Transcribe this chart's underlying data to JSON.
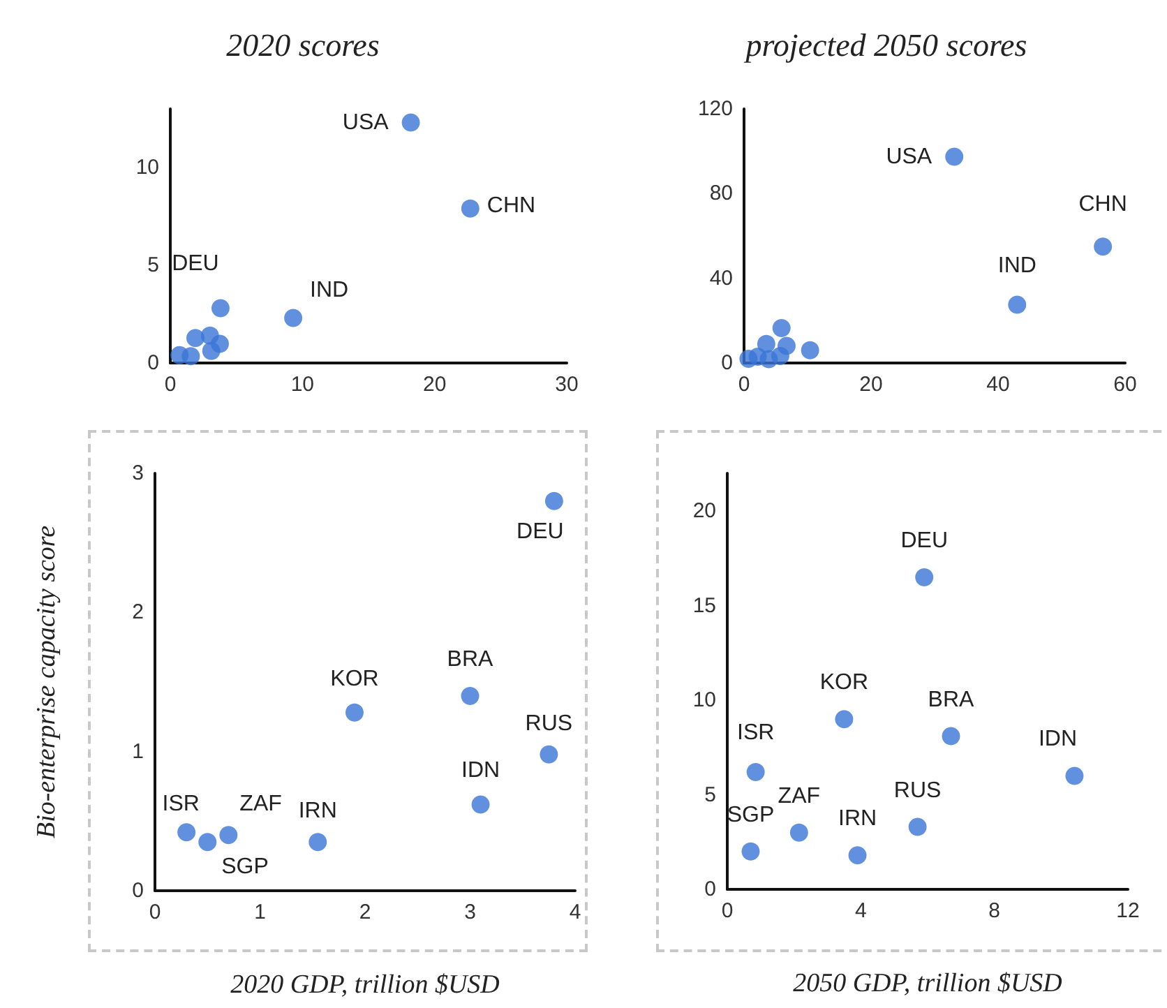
{
  "chart_data": [
    {
      "type": "scatter",
      "title": "2020 scores",
      "color": "#3a74d6",
      "marker": "circle",
      "grid": false,
      "xlim": [
        0,
        30
      ],
      "xticks": [
        0,
        10,
        20,
        30
      ],
      "ylim": [
        0,
        13
      ],
      "yticks": [
        0,
        5,
        10
      ],
      "x": [
        18.2,
        22.7,
        9.3,
        3.8,
        0.7,
        1.55,
        1.9,
        3.0,
        3.1,
        3.75
      ],
      "values": [
        12.3,
        7.9,
        2.3,
        2.8,
        0.4,
        0.35,
        1.28,
        1.4,
        0.62,
        0.98
      ],
      "annotations": [
        {
          "text": "USA",
          "x": 18.2,
          "y": 12.3
        },
        {
          "text": "CHN",
          "x": 22.7,
          "y": 7.9
        },
        {
          "text": "DEU",
          "x": 3.8,
          "y": 2.8
        },
        {
          "text": "IND",
          "x": 9.3,
          "y": 2.3
        }
      ]
    },
    {
      "type": "scatter",
      "title": "projected 2050 scores",
      "color": "#3a74d6",
      "marker": "circle",
      "grid": false,
      "xlim": [
        0,
        60
      ],
      "xticks": [
        0,
        20,
        40,
        60
      ],
      "ylim": [
        0,
        120
      ],
      "yticks": [
        0,
        40,
        80,
        120
      ],
      "x": [
        33.1,
        56.5,
        43,
        5.9,
        0.7,
        2.15,
        3.9,
        3.5,
        6.7,
        10.4,
        5.7
      ],
      "values": [
        97.4,
        55,
        27.5,
        16.5,
        2.0,
        3.0,
        1.8,
        9.0,
        8.1,
        6.0,
        3.3
      ],
      "annotations": [
        {
          "text": "USA",
          "x": 33.1,
          "y": 97.4
        },
        {
          "text": "IND",
          "x": 43,
          "y": 27.5
        },
        {
          "text": "CHN",
          "x": 56.5,
          "y": 55
        }
      ]
    },
    {
      "type": "scatter",
      "ylabel": "Bio-enterprise capacity score",
      "xlabel": "2020 GDP, trillion $USD",
      "color": "#3a74d6",
      "marker": "circle",
      "grid": false,
      "xlim": [
        0,
        4
      ],
      "xticks": [
        0,
        1,
        2,
        3,
        4
      ],
      "ylim": [
        0,
        3
      ],
      "yticks": [
        0,
        1,
        2,
        3
      ],
      "x": [
        0.3,
        0.5,
        0.7,
        1.55,
        1.9,
        3.0,
        3.1,
        3.75,
        3.8
      ],
      "values": [
        0.42,
        0.35,
        0.4,
        0.35,
        1.28,
        1.4,
        0.62,
        0.98,
        2.8
      ],
      "annotations": [
        {
          "text": "ISR",
          "x": 0.3,
          "y": 0.42
        },
        {
          "text": "SGP",
          "x": 0.5,
          "y": 0.35
        },
        {
          "text": "ZAF",
          "x": 0.7,
          "y": 0.4
        },
        {
          "text": "IRN",
          "x": 1.55,
          "y": 0.35
        },
        {
          "text": "KOR",
          "x": 1.9,
          "y": 1.28
        },
        {
          "text": "BRA",
          "x": 3.0,
          "y": 1.4
        },
        {
          "text": "IDN",
          "x": 3.1,
          "y": 0.62
        },
        {
          "text": "RUS",
          "x": 3.75,
          "y": 0.98
        },
        {
          "text": "DEU",
          "x": 3.8,
          "y": 2.8
        }
      ]
    },
    {
      "type": "scatter",
      "xlabel": "2050 GDP, trillion $USD",
      "color": "#3a74d6",
      "marker": "circle",
      "grid": false,
      "xlim": [
        0,
        12
      ],
      "xticks": [
        0,
        4,
        8,
        12
      ],
      "ylim": [
        0,
        22
      ],
      "yticks": [
        0,
        5,
        10,
        15,
        20
      ],
      "x": [
        0.85,
        0.7,
        2.15,
        3.9,
        3.5,
        6.7,
        10.4,
        5.7,
        5.9
      ],
      "values": [
        6.2,
        2.0,
        3.0,
        1.8,
        9.0,
        8.1,
        6.0,
        3.3,
        16.5
      ],
      "annotations": [
        {
          "text": "ISR",
          "x": 0.85,
          "y": 6.2
        },
        {
          "text": "SGP",
          "x": 0.7,
          "y": 2.0
        },
        {
          "text": "ZAF",
          "x": 2.15,
          "y": 3.0
        },
        {
          "text": "IRN",
          "x": 3.9,
          "y": 1.8
        },
        {
          "text": "KOR",
          "x": 3.5,
          "y": 9.0
        },
        {
          "text": "BRA",
          "x": 6.7,
          "y": 8.1
        },
        {
          "text": "IDN",
          "x": 10.4,
          "y": 6.0
        },
        {
          "text": "RUS",
          "x": 5.7,
          "y": 3.3
        },
        {
          "text": "DEU",
          "x": 5.9,
          "y": 16.5
        }
      ]
    }
  ]
}
